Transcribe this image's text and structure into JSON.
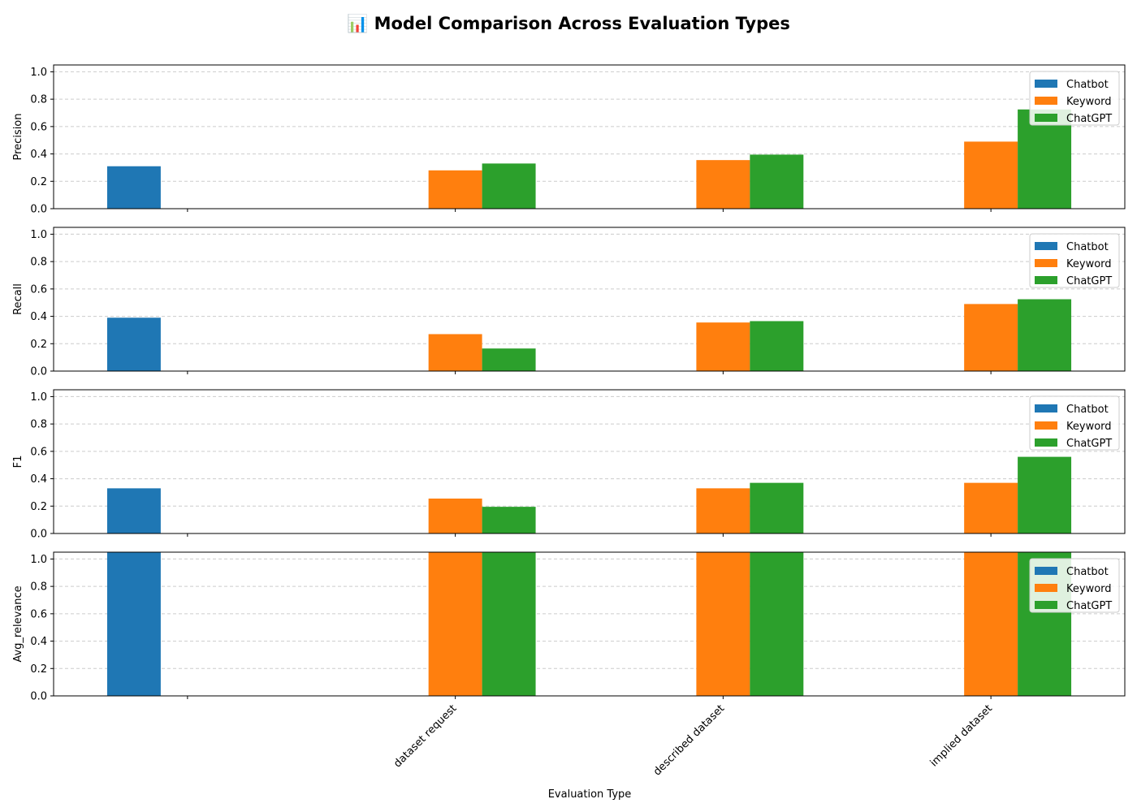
{
  "chart_data": {
    "type": "bar",
    "title": "📊 Model Comparison Across Evaluation Types",
    "xlabel": "Evaluation Type",
    "categories": [
      "",
      "dataset request",
      "described dataset",
      "implied dataset"
    ],
    "series_names": [
      "Chatbot",
      "Keyword",
      "ChatGPT"
    ],
    "colors": {
      "Chatbot": "#1f77b4",
      "Keyword": "#ff7f0e",
      "ChatGPT": "#2ca02c"
    },
    "legend_position": "upper-right",
    "grid": "y-dashed",
    "panels": [
      {
        "ylabel": "Precision",
        "ylim": [
          0,
          1.05
        ],
        "yticks": [
          "0.0",
          "0.2",
          "0.4",
          "0.6",
          "0.8",
          "1.0"
        ],
        "series": [
          {
            "name": "Chatbot",
            "values": [
              0.31,
              null,
              null,
              null
            ]
          },
          {
            "name": "Keyword",
            "values": [
              null,
              0.28,
              0.355,
              0.49
            ]
          },
          {
            "name": "ChatGPT",
            "values": [
              null,
              0.33,
              0.395,
              0.725
            ]
          }
        ]
      },
      {
        "ylabel": "Recall",
        "ylim": [
          0,
          1.05
        ],
        "yticks": [
          "0.0",
          "0.2",
          "0.4",
          "0.6",
          "0.8",
          "1.0"
        ],
        "series": [
          {
            "name": "Chatbot",
            "values": [
              0.39,
              null,
              null,
              null
            ]
          },
          {
            "name": "Keyword",
            "values": [
              null,
              0.27,
              0.355,
              0.49
            ]
          },
          {
            "name": "ChatGPT",
            "values": [
              null,
              0.165,
              0.365,
              0.525
            ]
          }
        ]
      },
      {
        "ylabel": "F1",
        "ylim": [
          0,
          1.05
        ],
        "yticks": [
          "0.0",
          "0.2",
          "0.4",
          "0.6",
          "0.8",
          "1.0"
        ],
        "series": [
          {
            "name": "Chatbot",
            "values": [
              0.33,
              null,
              null,
              null
            ]
          },
          {
            "name": "Keyword",
            "values": [
              null,
              0.255,
              0.33,
              0.37
            ]
          },
          {
            "name": "ChatGPT",
            "values": [
              null,
              0.195,
              0.37,
              0.56
            ]
          }
        ]
      },
      {
        "ylabel": "Avg_relevance",
        "ylim": [
          0,
          1.05
        ],
        "yticks": [
          "0.0",
          "0.2",
          "0.4",
          "0.6",
          "0.8",
          "1.0"
        ],
        "series": [
          {
            "name": "Chatbot",
            "values": [
              1.05,
              null,
              null,
              null
            ]
          },
          {
            "name": "Keyword",
            "values": [
              null,
              1.05,
              1.05,
              1.05
            ]
          },
          {
            "name": "ChatGPT",
            "values": [
              null,
              1.05,
              1.05,
              1.05
            ]
          }
        ]
      }
    ]
  }
}
